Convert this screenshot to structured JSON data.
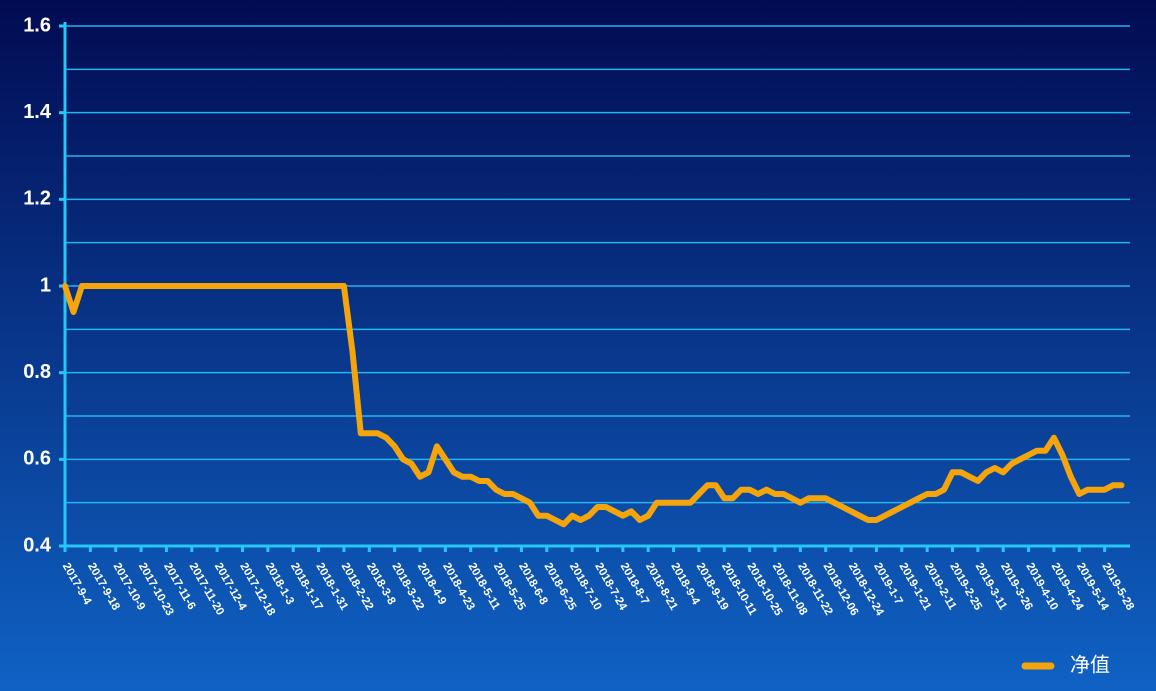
{
  "chart_data": {
    "type": "line",
    "categories": [
      "2017-9-4",
      null,
      null,
      "2017-9-18",
      null,
      null,
      "2017-10-9",
      null,
      null,
      "2017-10-23",
      null,
      null,
      "2017-11-6",
      null,
      null,
      "2017-11-20",
      null,
      null,
      "2017-12-4",
      null,
      null,
      "2017-12-18",
      null,
      null,
      "2018-1-3",
      null,
      null,
      "2018-1-17",
      null,
      null,
      "2018-1-31",
      null,
      null,
      "2018-2-22",
      null,
      null,
      "2018-3-8",
      null,
      null,
      "2018-3-22",
      null,
      null,
      "2018-4-9",
      null,
      null,
      "2018-4-23",
      null,
      null,
      "2018-5-11",
      null,
      null,
      "2018-5-25",
      null,
      null,
      "2018-6-8",
      null,
      null,
      "2018-6-25",
      null,
      null,
      "2018-7-10",
      null,
      null,
      "2018-7-24",
      null,
      null,
      "2018-8-7",
      null,
      null,
      "2018-8-21",
      null,
      null,
      "2018-9-4",
      null,
      null,
      "2018-9-19",
      null,
      null,
      "2018-10-11",
      null,
      null,
      "2018-10-25",
      null,
      null,
      "2018-11-08",
      null,
      null,
      "2018-11-22",
      null,
      null,
      "2018-12-06",
      null,
      null,
      "2018-12-24",
      null,
      null,
      "2019-1-7",
      null,
      null,
      "2019-1-21",
      null,
      null,
      "2019-2-11",
      null,
      null,
      "2019-2-25",
      null,
      null,
      "2019-3-11",
      null,
      null,
      "2019-3-26",
      null,
      null,
      "2019-4-10",
      null,
      null,
      "2019-4-24",
      null,
      null,
      "2019-5-14",
      null,
      null,
      "2019-5-28",
      null,
      null
    ],
    "series": [
      {
        "name": "净值",
        "color": "#f5a50a",
        "values": [
          1.0,
          0.94,
          1.0,
          1.0,
          1.0,
          1.0,
          1.0,
          1.0,
          1.0,
          1.0,
          1.0,
          1.0,
          1.0,
          1.0,
          1.0,
          1.0,
          1.0,
          1.0,
          1.0,
          1.0,
          1.0,
          1.0,
          1.0,
          1.0,
          1.0,
          1.0,
          1.0,
          1.0,
          1.0,
          1.0,
          1.0,
          1.0,
          1.0,
          1.0,
          0.85,
          0.66,
          0.66,
          0.66,
          0.65,
          0.63,
          0.6,
          0.59,
          0.56,
          0.57,
          0.63,
          0.6,
          0.57,
          0.56,
          0.56,
          0.55,
          0.55,
          0.53,
          0.52,
          0.52,
          0.51,
          0.5,
          0.47,
          0.47,
          0.46,
          0.45,
          0.47,
          0.46,
          0.47,
          0.49,
          0.49,
          0.48,
          0.47,
          0.48,
          0.46,
          0.47,
          0.5,
          0.5,
          0.5,
          0.5,
          0.5,
          0.52,
          0.54,
          0.54,
          0.51,
          0.51,
          0.53,
          0.53,
          0.52,
          0.53,
          0.52,
          0.52,
          0.51,
          0.5,
          0.51,
          0.51,
          0.51,
          0.5,
          0.49,
          0.48,
          0.47,
          0.46,
          0.46,
          0.47,
          0.48,
          0.49,
          0.5,
          0.51,
          0.52,
          0.52,
          0.53,
          0.57,
          0.57,
          0.56,
          0.55,
          0.57,
          0.58,
          0.57,
          0.59,
          0.6,
          0.61,
          0.62,
          0.62,
          0.65,
          0.61,
          0.56,
          0.52,
          0.53,
          0.53,
          0.53,
          0.54,
          0.54
        ]
      }
    ],
    "ylim": [
      0.4,
      1.6
    ],
    "yticks": [
      0.4,
      0.6,
      0.8,
      1,
      1.2,
      1.4,
      1.6
    ],
    "minor_yticks": [
      0.5,
      0.7,
      0.9,
      1.1,
      1.3,
      1.5
    ],
    "grid": true,
    "legend": "bottom-right"
  }
}
